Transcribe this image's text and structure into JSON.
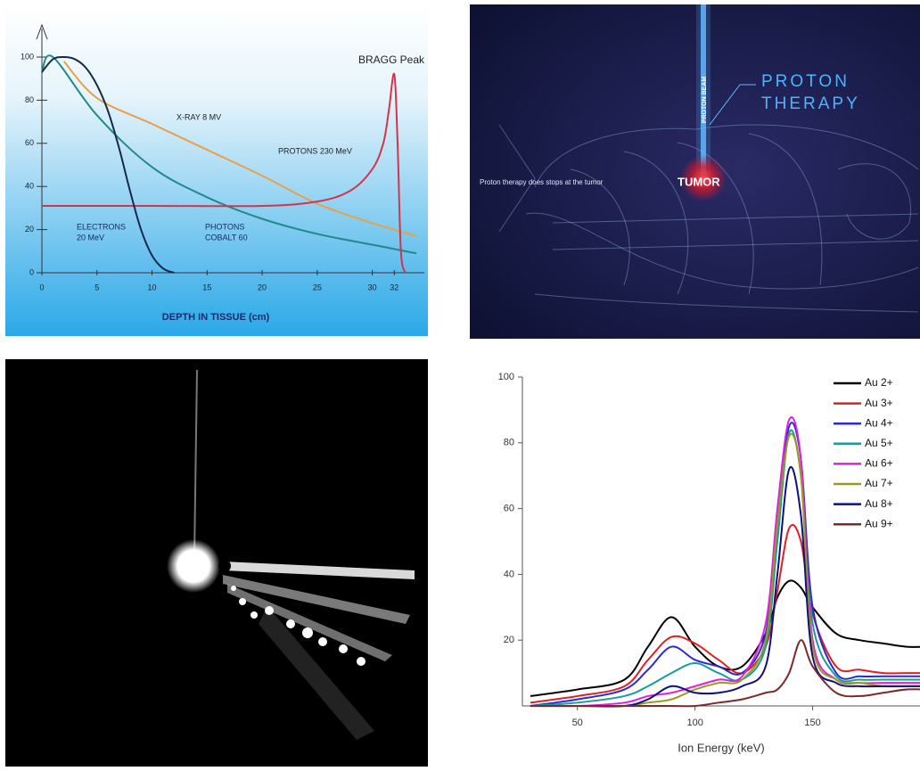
{
  "dose_chart": {
    "type": "line",
    "x_label": "DEPTH IN TISSUE (cm)",
    "xlim": [
      0,
      34
    ],
    "ylim": [
      0,
      100
    ],
    "xticks": [
      0,
      5,
      10,
      15,
      20,
      25,
      30,
      32
    ],
    "yticks": [
      0,
      20,
      40,
      60,
      80,
      100
    ],
    "annotations": [
      "BRAGG Peak",
      "X-RAY 8 MV",
      "PROTONS 230 MeV",
      "ELECTRONS",
      "20 MeV",
      "PHOTONS",
      "COBALT 60"
    ],
    "series": [
      {
        "color": "#e8a04a",
        "x": [
          2,
          5,
          10,
          15,
          20,
          25,
          30,
          34
        ],
        "values": [
          98,
          81,
          69,
          57,
          45,
          32,
          23,
          17
        ]
      },
      {
        "color": "#1e8a8a",
        "x": [
          0,
          1,
          5,
          10,
          15,
          20,
          25,
          30,
          34
        ],
        "values": [
          93,
          100,
          73,
          49,
          35,
          25,
          18,
          13,
          9
        ]
      },
      {
        "color": "#d2344e",
        "x": [
          0,
          10,
          20,
          25,
          28,
          30,
          31,
          31.5,
          32,
          32.3,
          32.6,
          33
        ],
        "values": [
          31,
          31,
          31,
          33,
          38,
          48,
          60,
          75,
          92,
          60,
          10,
          0
        ]
      },
      {
        "color": "#16294a",
        "x": [
          0,
          1,
          2,
          3,
          4,
          5,
          6,
          7,
          8,
          9,
          10,
          11,
          12
        ],
        "values": [
          93,
          99,
          100,
          99,
          95,
          87,
          75,
          58,
          38,
          20,
          8,
          2,
          0
        ]
      }
    ]
  },
  "therapy_image": {
    "title": [
      "PROTON",
      "THERAPY"
    ],
    "beam_label": "PROTON BEAM",
    "caption": "Proton therapy does stops at the tumor",
    "target_label": "TUMOR"
  },
  "spectrum_chart": {
    "type": "line",
    "x_label": "Ion Energy (keV)",
    "xlim": [
      27,
      196
    ],
    "ylim": [
      0,
      100
    ],
    "xticks": [
      50,
      100,
      150,
      200
    ],
    "yticks": [
      20,
      40,
      60,
      80,
      100
    ],
    "x": [
      30,
      50,
      70,
      80,
      90,
      100,
      110,
      120,
      130,
      135,
      140,
      145,
      150,
      160,
      170,
      180,
      190,
      200,
      210
    ],
    "series": [
      {
        "name": "Au 2+",
        "color": "#000000",
        "values": [
          3,
          5,
          8,
          18,
          27,
          18,
          12,
          12,
          22,
          33,
          38,
          36,
          30,
          22,
          20,
          19,
          18,
          18,
          18
        ]
      },
      {
        "name": "Au 3+",
        "color": "#e02020",
        "values": [
          1,
          3,
          6,
          14,
          21,
          19,
          14,
          10,
          18,
          35,
          54,
          50,
          28,
          12,
          11,
          10,
          10,
          10,
          10
        ]
      },
      {
        "name": "Au 4+",
        "color": "#2a2ad0",
        "values": [
          0,
          2,
          5,
          11,
          18,
          14,
          12,
          10,
          22,
          55,
          85,
          75,
          30,
          10,
          9,
          9,
          9,
          9,
          9
        ]
      },
      {
        "name": "Au 5+",
        "color": "#1a9a9a",
        "values": [
          0,
          1,
          3,
          6,
          10,
          13,
          10,
          8,
          18,
          50,
          83,
          70,
          25,
          9,
          8,
          8,
          8,
          8,
          8
        ]
      },
      {
        "name": "Au 6+",
        "color": "#e020e0",
        "values": [
          0,
          0,
          1,
          3,
          4,
          6,
          8,
          9,
          25,
          60,
          87,
          75,
          20,
          8,
          7,
          7,
          7,
          7,
          7
        ]
      },
      {
        "name": "Au 7+",
        "color": "#9a9a20",
        "values": [
          0,
          0,
          0,
          1,
          2,
          5,
          7,
          8,
          20,
          55,
          82,
          70,
          18,
          8,
          7,
          6,
          6,
          6,
          6
        ]
      },
      {
        "name": "Au 8+",
        "color": "#101080",
        "values": [
          0,
          0,
          0,
          2,
          6,
          4,
          4,
          6,
          12,
          40,
          72,
          58,
          15,
          7,
          6,
          6,
          6,
          6,
          6
        ]
      },
      {
        "name": "Au 9+",
        "color": "#7a2a2a",
        "values": [
          0,
          0,
          0,
          0,
          0,
          0,
          1,
          2,
          4,
          5,
          10,
          20,
          12,
          4,
          3,
          4,
          5,
          5,
          5
        ]
      }
    ]
  }
}
